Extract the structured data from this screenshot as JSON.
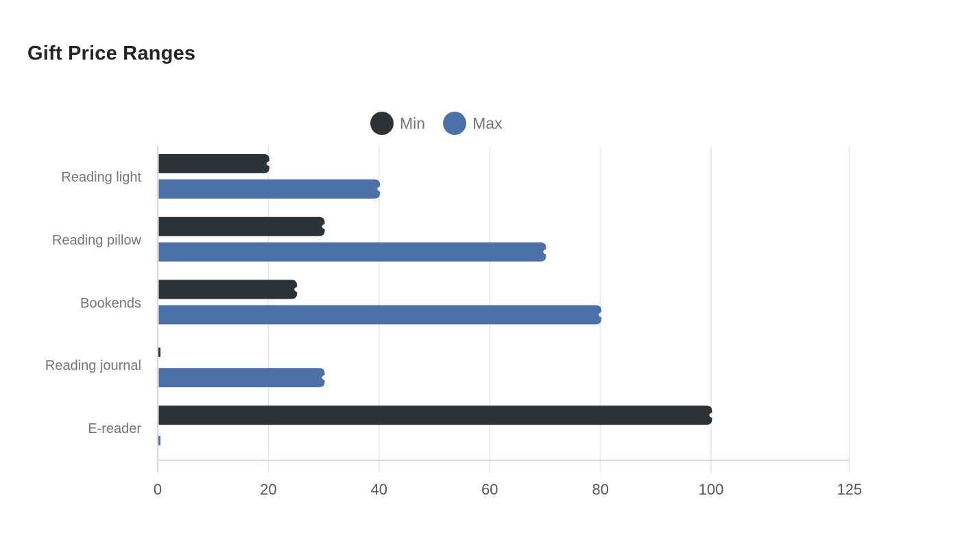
{
  "title": "Gift Price Ranges",
  "legend": {
    "min_label": "Min",
    "max_label": "Max"
  },
  "chart_data": {
    "type": "bar",
    "orientation": "horizontal",
    "title": "Gift Price Ranges",
    "categories": [
      "Reading light",
      "Reading pillow",
      "Bookends",
      "Reading journal",
      "E-reader"
    ],
    "series": [
      {
        "name": "Min",
        "color": "#2b3338",
        "values": [
          20,
          30,
          25,
          0,
          100
        ]
      },
      {
        "name": "Max",
        "color": "#4c70a8",
        "values": [
          40,
          70,
          80,
          30,
          0
        ]
      }
    ],
    "x_ticks": [
      0,
      20,
      40,
      60,
      80,
      100,
      125
    ],
    "xlim": [
      0,
      125
    ],
    "grid": "vertical",
    "legend_position": "top-center",
    "style": {
      "grid_color": "#e8e8e8",
      "axis_color": "#dcdcdc",
      "tick_text_color": "#565656",
      "category_text_color": "#757575",
      "title_color": "#212529"
    }
  }
}
